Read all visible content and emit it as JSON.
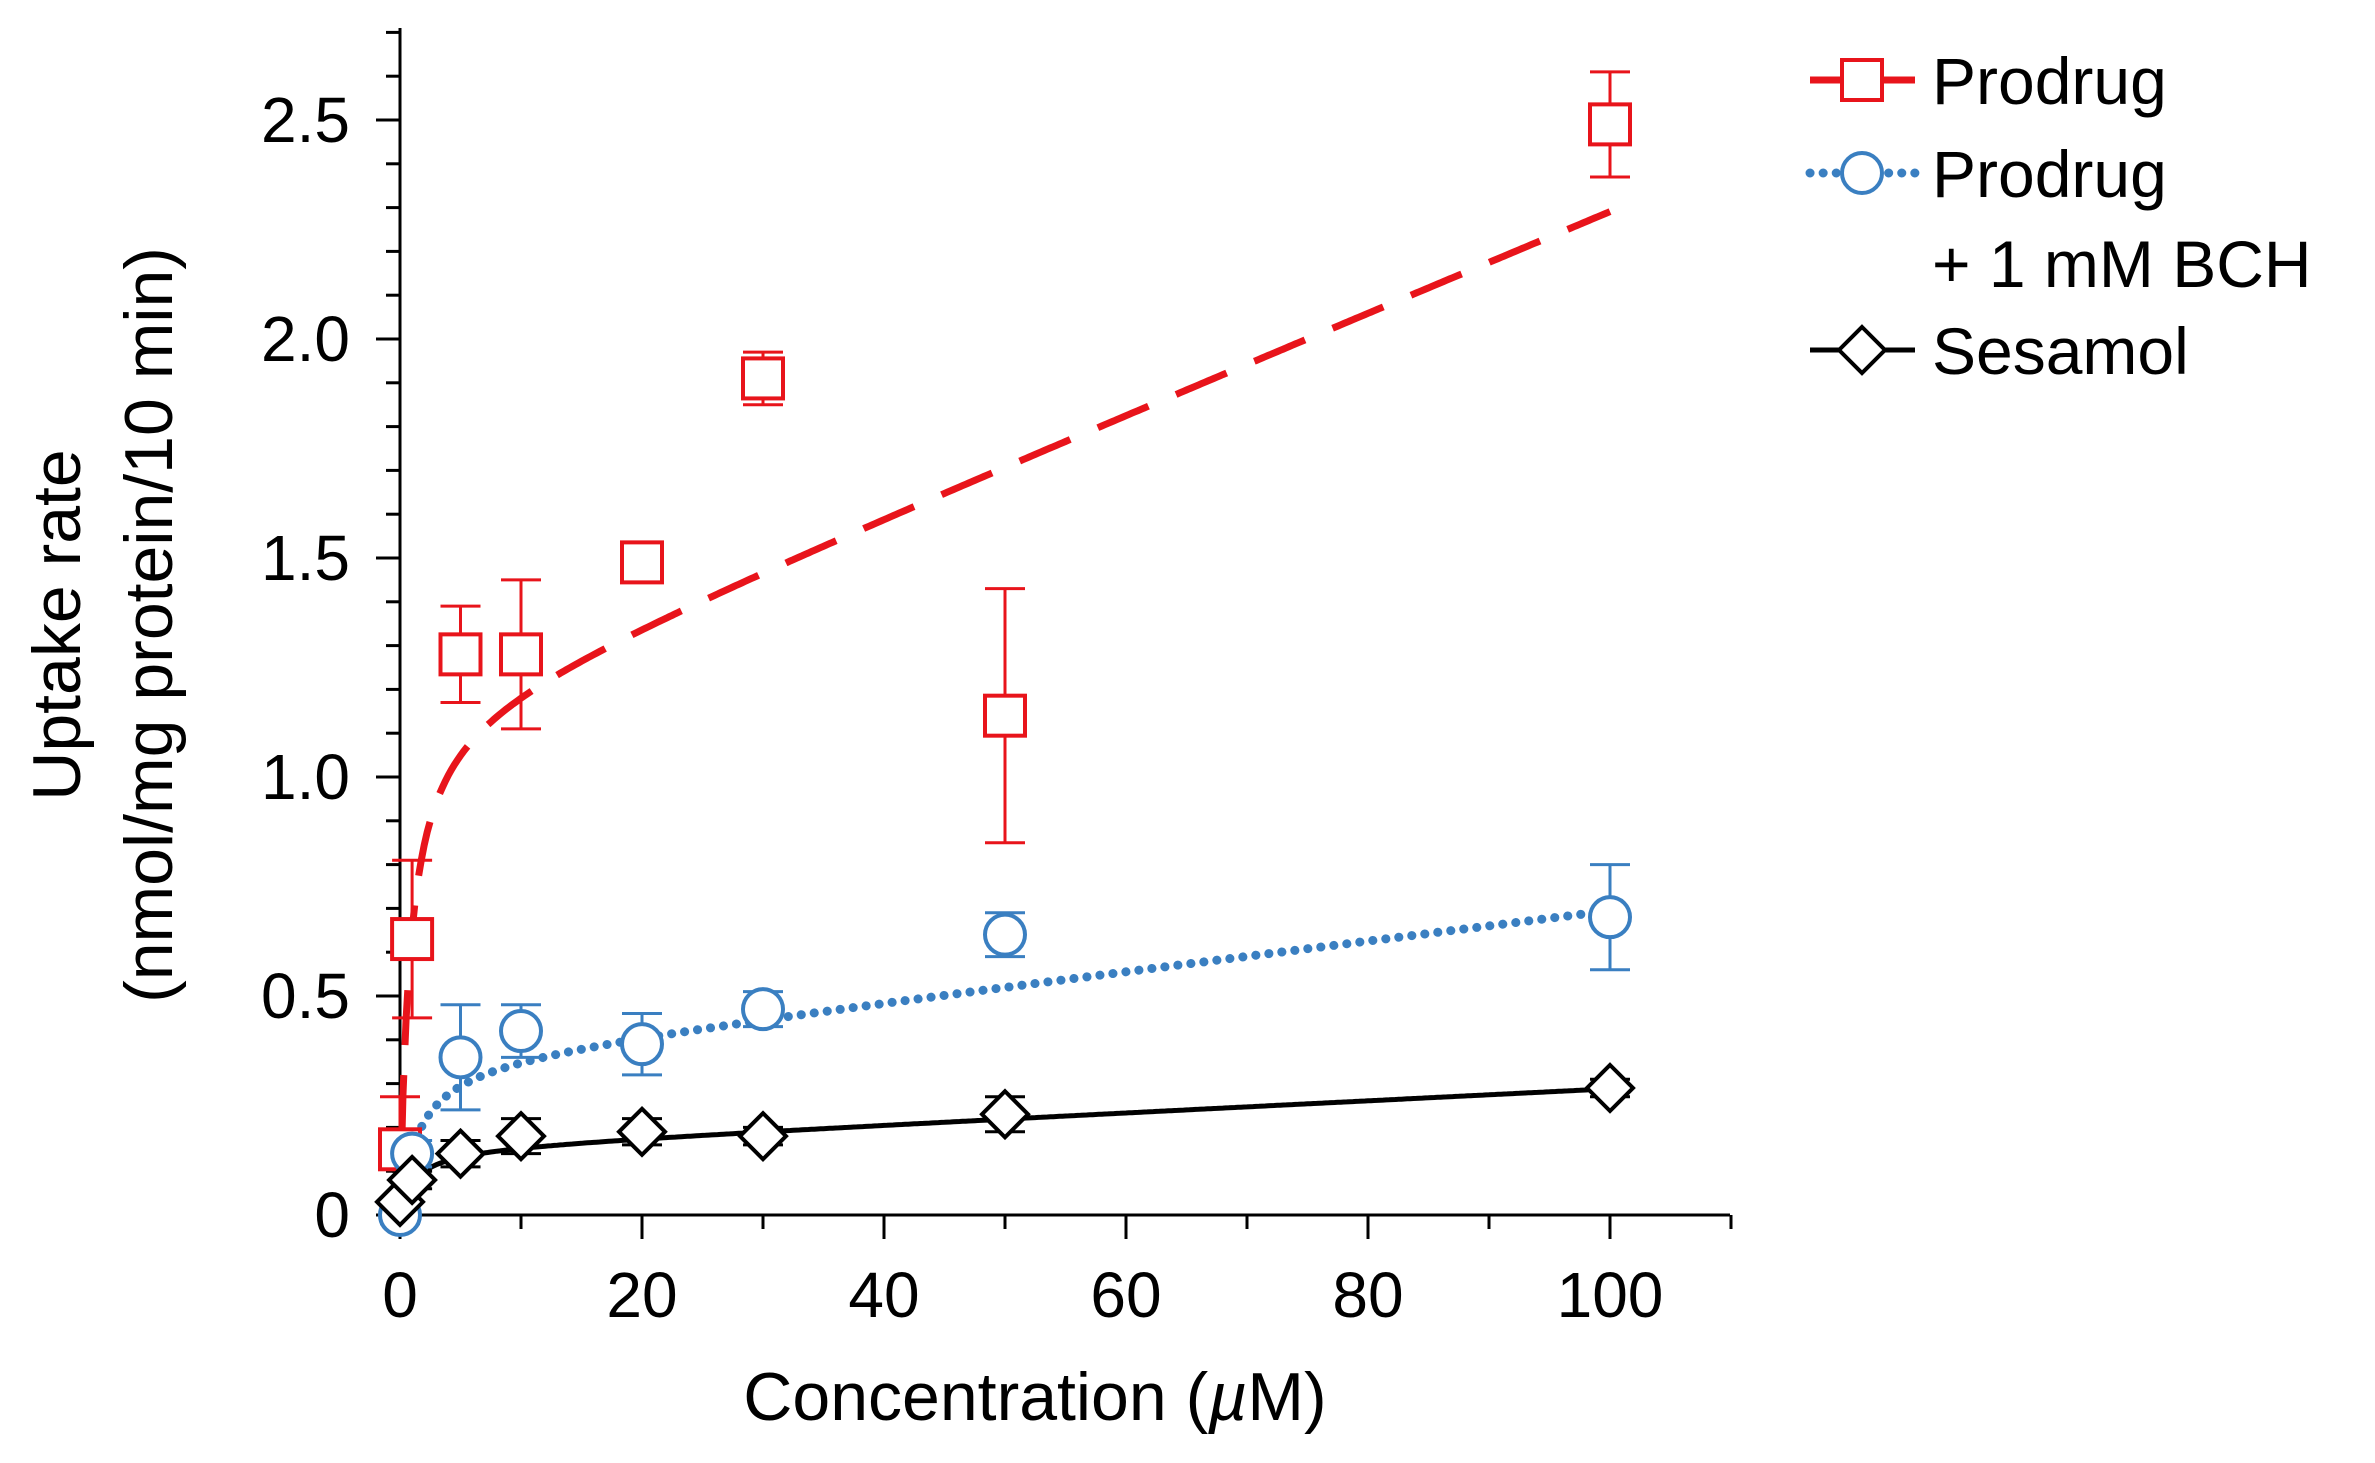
{
  "chart_data": {
    "type": "scatter",
    "title": "",
    "xlabel_text": "Concentration (",
    "xlabel_mu": "µ",
    "xlabel_tail": "M)",
    "ylabel": "Uptake rate",
    "ylabel2": "(nmol/mg protein/10 min)",
    "xlim": [
      0,
      110
    ],
    "ylim": [
      0,
      2.7
    ],
    "x_ticks": [
      0,
      20,
      40,
      60,
      80,
      100
    ],
    "x_tick_labels": [
      "0",
      "20",
      "40",
      "60",
      "80",
      "100"
    ],
    "y_ticks": [
      0,
      0.5,
      1.0,
      1.5,
      2.0,
      2.5
    ],
    "y_tick_labels": [
      "0",
      "0.5",
      "1.0",
      "1.5",
      "2.0",
      "2.5"
    ],
    "grid": false,
    "legend_position": "top-right, outside plot",
    "series": [
      {
        "name": "Prodrug",
        "legend_lines": [
          "Prodrug"
        ],
        "color": "#e8141b",
        "marker": "square",
        "line_style": "dashed",
        "x": [
          0,
          1,
          5,
          10,
          20,
          30,
          50,
          100
        ],
        "y": [
          0.15,
          0.63,
          1.28,
          1.28,
          1.49,
          1.91,
          1.14,
          2.49
        ],
        "error": [
          0.12,
          0.18,
          0.11,
          0.17,
          0.03,
          0.06,
          0.29,
          0.12
        ],
        "fit": {
          "Vmax": 1.15,
          "Km": 0.8,
          "kd": 0.0115
        }
      },
      {
        "name": "Prodrug + 1 mM BCH",
        "legend_lines": [
          "Prodrug",
          "+ 1 mM BCH"
        ],
        "color": "#3a7fc1",
        "marker": "circle",
        "line_style": "dotted",
        "x": [
          0,
          1,
          5,
          10,
          20,
          30,
          50,
          100
        ],
        "y": [
          0.0,
          0.14,
          0.36,
          0.42,
          0.39,
          0.47,
          0.64,
          0.68
        ],
        "error": [
          0.02,
          0.03,
          0.12,
          0.06,
          0.07,
          0.04,
          0.05,
          0.12
        ],
        "fit": {
          "Vmax": 0.36,
          "Km": 1.5,
          "kd": 0.0034
        }
      },
      {
        "name": "Sesamol",
        "legend_lines": [
          "Sesamol"
        ],
        "color": "#000000",
        "marker": "diamond",
        "line_style": "solid",
        "x": [
          0,
          1,
          5,
          10,
          20,
          30,
          50,
          100
        ],
        "y": [
          0.03,
          0.08,
          0.14,
          0.18,
          0.19,
          0.18,
          0.23,
          0.29
        ],
        "error": [
          0.01,
          0.02,
          0.03,
          0.04,
          0.03,
          0.02,
          0.04,
          0.02
        ],
        "fit": {
          "Vmax": 0.155,
          "Km": 1.2,
          "kd": 0.00135
        }
      }
    ]
  }
}
